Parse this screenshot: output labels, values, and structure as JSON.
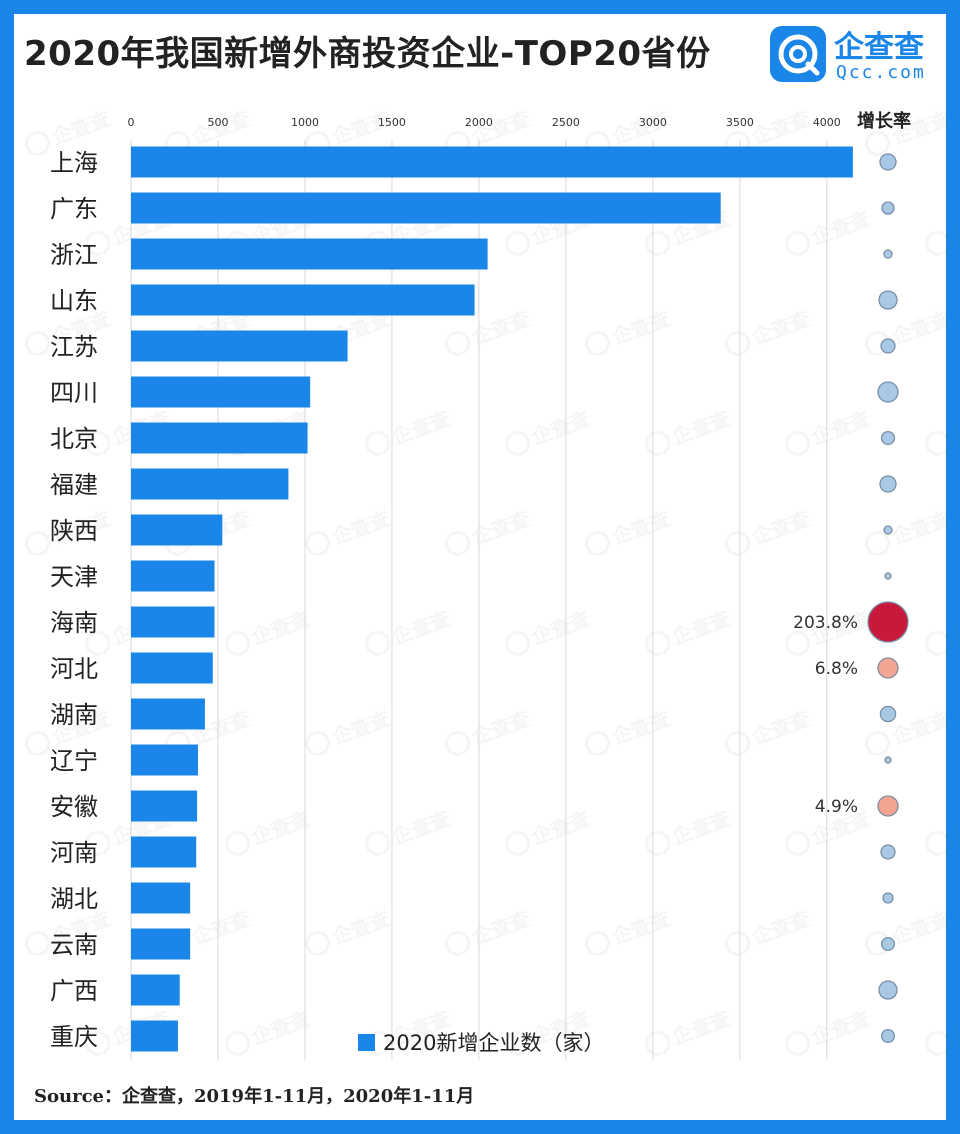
{
  "title": "2020年我国新增外商投资企业-TOP20省份",
  "logo": {
    "name": "企查查",
    "url": "Qcc.com"
  },
  "watermark": "企查查",
  "source": "Source：企查查，2019年1-11月，2020年1-11月",
  "colors": {
    "bar": "#1a86e8",
    "frame": "#1a86e8",
    "bubble_neutral": "#a9c8e6",
    "bubble_growth_high": "#c8193c",
    "bubble_growth_low": "#f3a592"
  },
  "chart_data": {
    "type": "bar",
    "orientation": "horizontal",
    "categories": [
      "上海",
      "广东",
      "浙江",
      "山东",
      "江苏",
      "四川",
      "北京",
      "福建",
      "陕西",
      "天津",
      "海南",
      "河北",
      "湖南",
      "辽宁",
      "安徽",
      "河南",
      "湖北",
      "云南",
      "广西",
      "重庆"
    ],
    "series": [
      {
        "name": "2020新增企业数（家）",
        "values": [
          4150,
          3390,
          2050,
          1975,
          1245,
          1030,
          1015,
          905,
          525,
          480,
          480,
          470,
          425,
          385,
          380,
          375,
          340,
          340,
          280,
          270
        ]
      }
    ],
    "xlim": [
      0,
      4300
    ],
    "xticks": [
      0,
      500,
      1000,
      1500,
      2000,
      2500,
      3000,
      3500,
      4000
    ],
    "grid": true,
    "legend_position": "bottom",
    "growth_header": "增长率",
    "growth_rates": [
      {
        "category": "上海",
        "size": 0.3,
        "kind": "neutral"
      },
      {
        "category": "广东",
        "size": 0.2,
        "kind": "neutral"
      },
      {
        "category": "浙江",
        "size": 0.1,
        "kind": "neutral"
      },
      {
        "category": "山东",
        "size": 0.35,
        "kind": "neutral"
      },
      {
        "category": "江苏",
        "size": 0.25,
        "kind": "neutral"
      },
      {
        "category": "四川",
        "size": 0.4,
        "kind": "neutral"
      },
      {
        "category": "北京",
        "size": 0.22,
        "kind": "neutral"
      },
      {
        "category": "福建",
        "size": 0.3,
        "kind": "neutral"
      },
      {
        "category": "陕西",
        "size": 0.1,
        "kind": "neutral"
      },
      {
        "category": "天津",
        "size": 0.05,
        "kind": "neutral"
      },
      {
        "category": "海南",
        "size": 1.0,
        "kind": "growth_high",
        "label": "203.8%"
      },
      {
        "category": "河北",
        "size": 0.4,
        "kind": "growth_low",
        "label": "6.8%"
      },
      {
        "category": "湖南",
        "size": 0.28,
        "kind": "neutral"
      },
      {
        "category": "辽宁",
        "size": 0.05,
        "kind": "neutral"
      },
      {
        "category": "安徽",
        "size": 0.4,
        "kind": "growth_low",
        "label": "4.9%"
      },
      {
        "category": "河南",
        "size": 0.25,
        "kind": "neutral"
      },
      {
        "category": "湖北",
        "size": 0.15,
        "kind": "neutral"
      },
      {
        "category": "云南",
        "size": 0.22,
        "kind": "neutral"
      },
      {
        "category": "广西",
        "size": 0.35,
        "kind": "neutral"
      },
      {
        "category": "重庆",
        "size": 0.22,
        "kind": "neutral"
      }
    ]
  }
}
